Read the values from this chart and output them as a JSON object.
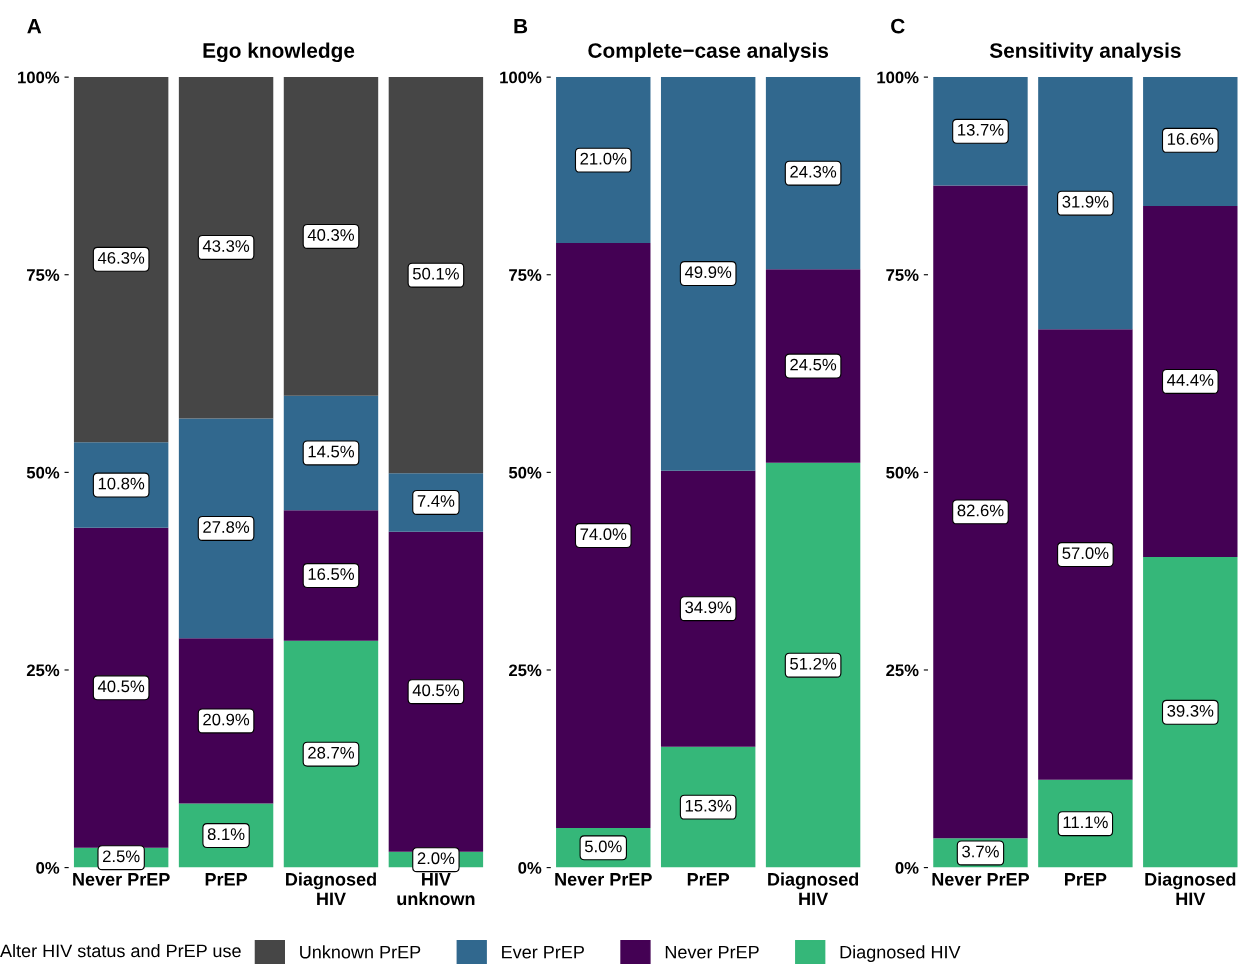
{
  "chart_data": [
    {
      "type": "bar",
      "title": "Ego knowledge",
      "annotations": [
        "A"
      ],
      "stacked": true,
      "categories": [
        "Never PrEP",
        "PrEP",
        "Diagnosed\nHIV",
        "HIV\nunknown"
      ],
      "ylim": [
        0,
        100
      ],
      "yticks": [
        {
          "value": 0,
          "label": "0%"
        },
        {
          "value": 25,
          "label": "25%"
        },
        {
          "value": 50,
          "label": "50%"
        },
        {
          "value": 75,
          "label": "75%"
        },
        {
          "value": 100,
          "label": "100%"
        }
      ],
      "grid": false,
      "legend": "bottom",
      "legend_title": "Alter HIV status and PrEP use",
      "series": [
        {
          "name": "Diagnosed HIV",
          "color": "#35b779",
          "values": [
            2.5,
            8.1,
            28.7,
            2.0
          ],
          "value_labels": [
            "2.5%",
            "8.1%",
            "28.7%",
            "2.0%"
          ]
        },
        {
          "name": "Never PrEP",
          "color": "#440154",
          "values": [
            40.5,
            20.9,
            16.5,
            40.5
          ],
          "value_labels": [
            "40.5%",
            "20.9%",
            "16.5%",
            "40.5%"
          ]
        },
        {
          "name": "Ever PrEP",
          "color": "#31688e",
          "values": [
            10.8,
            27.8,
            14.5,
            7.4
          ],
          "value_labels": [
            "10.8%",
            "27.8%",
            "14.5%",
            "7.4%"
          ]
        },
        {
          "name": "Unknown PrEP",
          "color": "#464646",
          "values": [
            46.3,
            43.3,
            40.3,
            50.1
          ],
          "value_labels": [
            "46.3%",
            "43.3%",
            "40.3%",
            "50.1%"
          ]
        }
      ]
    },
    {
      "type": "bar",
      "title": "Complete−case analysis",
      "annotations": [
        "B"
      ],
      "stacked": true,
      "categories": [
        "Never PrEP",
        "PrEP",
        "Diagnosed\nHIV"
      ],
      "ylim": [
        0,
        100
      ],
      "yticks": [
        {
          "value": 0,
          "label": "0%"
        },
        {
          "value": 25,
          "label": "25%"
        },
        {
          "value": 50,
          "label": "50%"
        },
        {
          "value": 75,
          "label": "75%"
        },
        {
          "value": 100,
          "label": "100%"
        }
      ],
      "grid": false,
      "series": [
        {
          "color": "#35b779",
          "values": [
            5.0,
            15.3,
            51.2
          ],
          "value_labels": [
            "5.0%",
            "15.3%",
            "51.2%"
          ]
        },
        {
          "color": "#440154",
          "values": [
            74.0,
            34.9,
            24.5
          ],
          "value_labels": [
            "74.0%",
            "34.9%",
            "24.5%"
          ]
        },
        {
          "color": "#31688e",
          "values": [
            21.0,
            49.9,
            24.3
          ],
          "value_labels": [
            "21.0%",
            "49.9%",
            "24.3%"
          ]
        }
      ]
    },
    {
      "type": "bar",
      "title": "Sensitivity analysis",
      "annotations": [
        "C"
      ],
      "stacked": true,
      "categories": [
        "Never PrEP",
        "PrEP",
        "Diagnosed\nHIV"
      ],
      "ylim": [
        0,
        100
      ],
      "yticks": [
        {
          "value": 0,
          "label": "0%"
        },
        {
          "value": 25,
          "label": "25%"
        },
        {
          "value": 50,
          "label": "50%"
        },
        {
          "value": 75,
          "label": "75%"
        },
        {
          "value": 100,
          "label": "100%"
        }
      ],
      "grid": false,
      "series": [
        {
          "color": "#35b779",
          "values": [
            3.7,
            11.1,
            39.3
          ],
          "value_labels": [
            "3.7%",
            "11.1%",
            "39.3%"
          ]
        },
        {
          "color": "#440154",
          "values": [
            82.6,
            57.0,
            44.4
          ],
          "value_labels": [
            "82.6%",
            "57.0%",
            "44.4%"
          ]
        },
        {
          "color": "#31688e",
          "values": [
            13.7,
            31.9,
            16.6
          ],
          "value_labels": [
            "13.7%",
            "31.9%",
            "16.6%"
          ]
        }
      ]
    }
  ]
}
